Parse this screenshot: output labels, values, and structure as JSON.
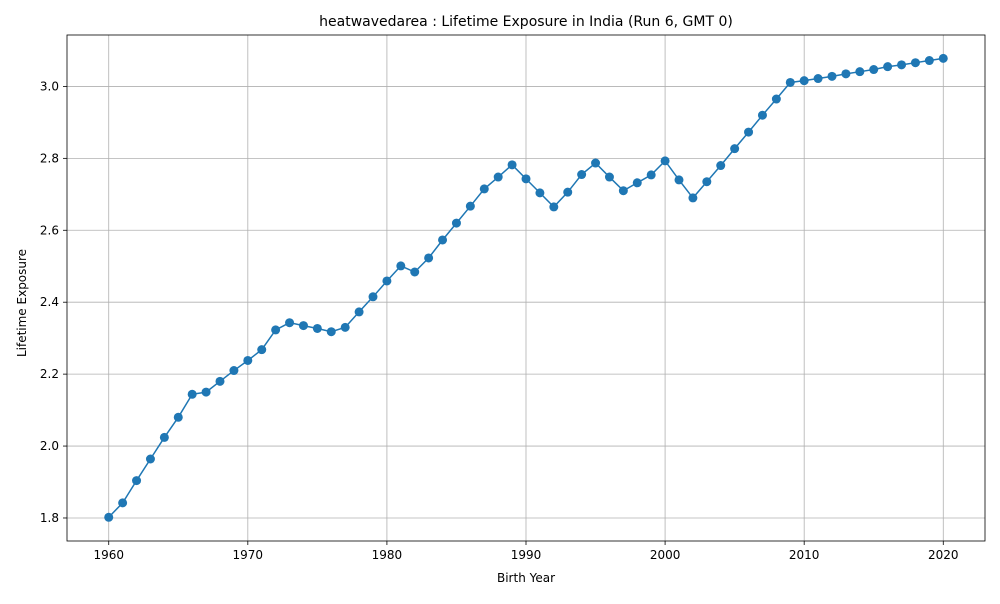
{
  "chart_data": {
    "type": "line",
    "title": "heatwavedarea : Lifetime Exposure in India (Run 6, GMT 0)",
    "xlabel": "Birth Year",
    "ylabel": "Lifetime Exposure",
    "xlim": [
      1957,
      2023
    ],
    "ylim": [
      1.736,
      3.143
    ],
    "xticks": [
      1960,
      1970,
      1980,
      1990,
      2000,
      2010,
      2020
    ],
    "yticks": [
      1.8,
      2.0,
      2.2,
      2.4,
      2.6,
      2.8,
      3.0
    ],
    "ytick_labels": [
      "1.8",
      "2.0",
      "2.2",
      "2.4",
      "2.6",
      "2.8",
      "3.0"
    ],
    "grid": true,
    "color": "#1f77b4",
    "marker": "circle",
    "x": [
      1960,
      1961,
      1962,
      1963,
      1964,
      1965,
      1966,
      1967,
      1968,
      1969,
      1970,
      1971,
      1972,
      1973,
      1974,
      1975,
      1976,
      1977,
      1978,
      1979,
      1980,
      1981,
      1982,
      1983,
      1984,
      1985,
      1986,
      1987,
      1988,
      1989,
      1990,
      1991,
      1992,
      1993,
      1994,
      1995,
      1996,
      1997,
      1998,
      1999,
      2000,
      2001,
      2002,
      2003,
      2004,
      2005,
      2006,
      2007,
      2008,
      2009,
      2010,
      2011,
      2012,
      2013,
      2014,
      2015,
      2016,
      2017,
      2018,
      2019,
      2020
    ],
    "y": [
      1.802,
      1.842,
      1.904,
      1.964,
      2.024,
      2.08,
      2.144,
      2.15,
      2.18,
      2.21,
      2.238,
      2.268,
      2.323,
      2.343,
      2.335,
      2.327,
      2.318,
      2.33,
      2.373,
      2.415,
      2.459,
      2.501,
      2.484,
      2.523,
      2.573,
      2.62,
      2.667,
      2.715,
      2.748,
      2.782,
      2.743,
      2.704,
      2.665,
      2.706,
      2.755,
      2.787,
      2.748,
      2.71,
      2.732,
      2.754,
      2.793,
      2.74,
      2.69,
      2.735,
      2.78,
      2.827,
      2.873,
      2.92,
      2.965,
      3.011,
      3.016,
      3.022,
      3.028,
      3.035,
      3.041,
      3.047,
      3.055,
      3.06,
      3.066,
      3.072,
      3.078
    ]
  }
}
